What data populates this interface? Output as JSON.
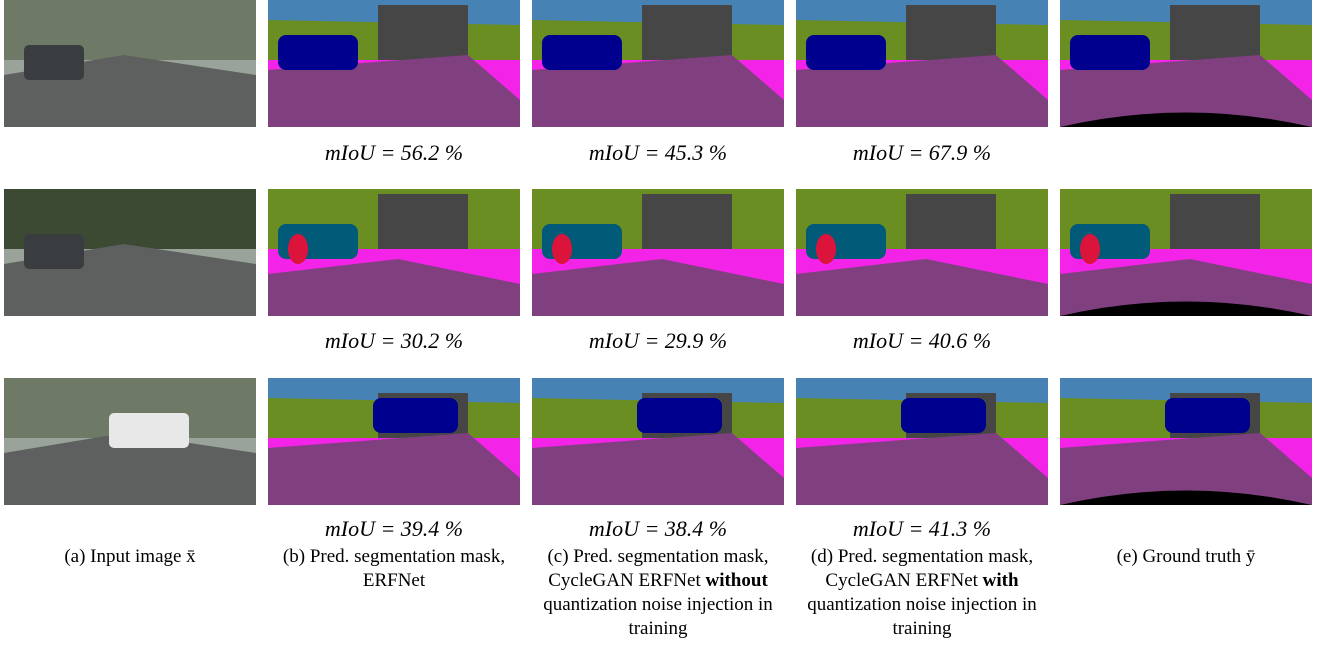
{
  "rows": [
    {
      "miou": [
        "mIoU = 56.2 %",
        "mIoU = 45.3 %",
        "mIoU = 67.9 %"
      ]
    },
    {
      "miou": [
        "mIoU = 30.2 %",
        "mIoU = 29.9 %",
        "mIoU = 40.6 %"
      ]
    },
    {
      "miou": [
        "mIoU = 39.4 %",
        "mIoU = 38.4 %",
        "mIoU = 41.3 %"
      ]
    }
  ],
  "captions": [
    {
      "prefix": "(a) Input image x̄"
    },
    {
      "prefix": "(b) Pred. segmentation mask, ERFNet"
    },
    {
      "prefix": "(c) Pred. segmentation mask, CycleGAN ERFNet",
      "bold": "without",
      "suffix": "quantization noise injection in training"
    },
    {
      "prefix": "(d) Pred. segmentation mask, CycleGAN ERFNet",
      "bold": "with",
      "suffix": "quantization noise injection in training"
    },
    {
      "prefix": "(e) Ground truth ȳ"
    }
  ]
}
